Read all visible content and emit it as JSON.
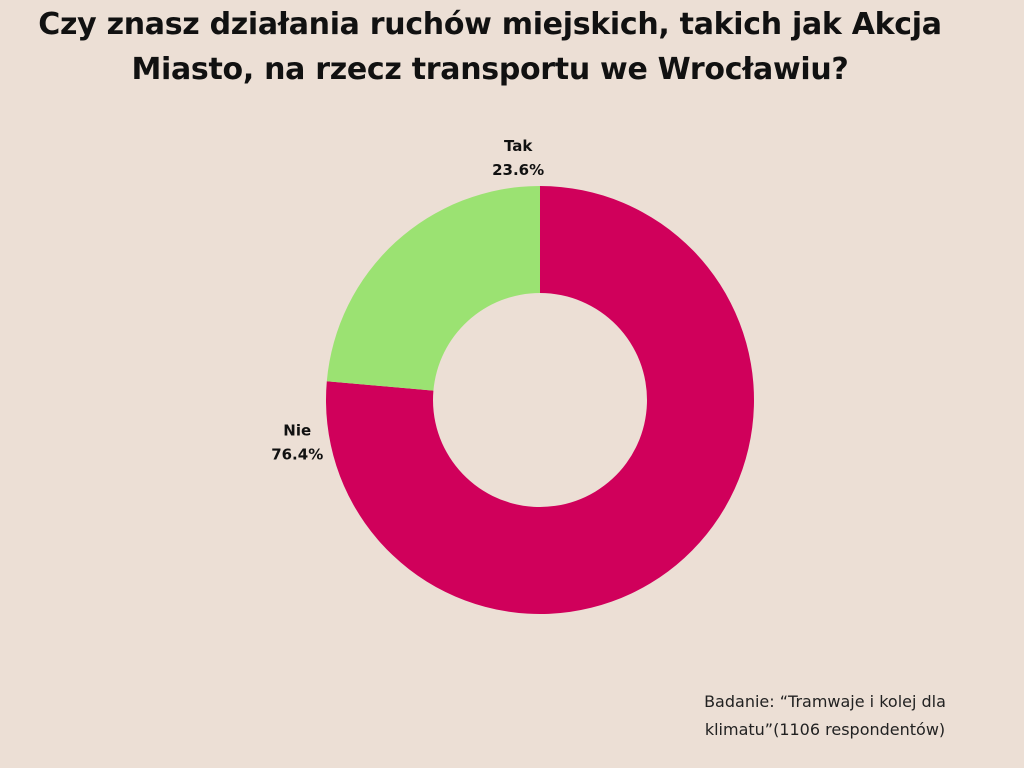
{
  "title": "Czy znasz działania ruchów miejskich, takich jak Akcja Miasto, na rzecz transportu we Wrocławiu?",
  "note": "Badanie: “Tramwaje i kolej dla klimatu”(1106 respondentów)",
  "chart_data": {
    "type": "pie",
    "variant": "donut",
    "title": "Czy znasz działania ruchów miejskich, takich jak Akcja Miasto, na rzecz transportu we Wrocławiu?",
    "categories": [
      "Nie",
      "Tak"
    ],
    "values": [
      76.4,
      23.6
    ],
    "labels": [
      "76.4%",
      "23.6%"
    ],
    "colors": [
      "#d0005b",
      "#9be272"
    ],
    "start": "12 o'clock",
    "direction": "clockwise",
    "legend": "none"
  }
}
